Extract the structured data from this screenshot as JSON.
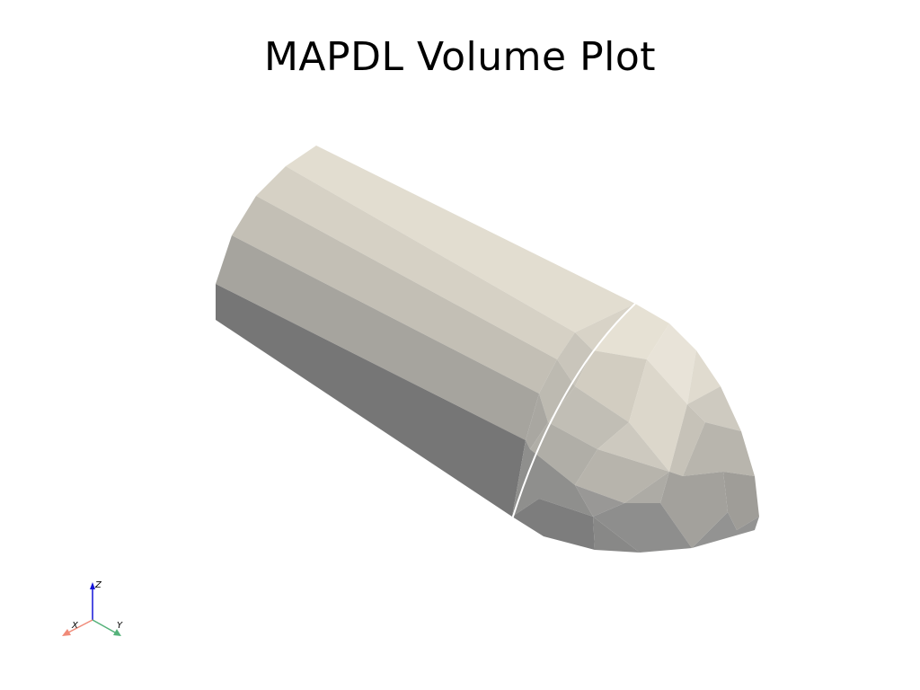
{
  "title": "MAPDL Volume Plot",
  "model": {
    "surface_color": "#e3ddd0",
    "edge_line_color": "#ffffff"
  },
  "axes_widget": {
    "x_label": "X",
    "y_label": "Y",
    "z_label": "Z",
    "x_color": "#f08a78",
    "y_color": "#55b27a",
    "z_color": "#1414d8"
  }
}
